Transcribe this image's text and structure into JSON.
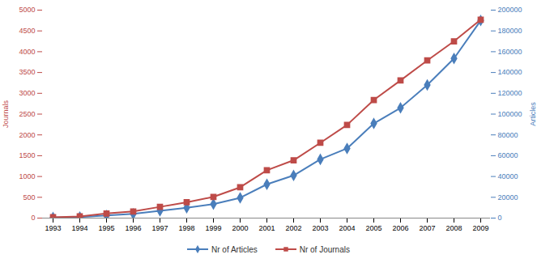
{
  "chart_data": {
    "type": "line",
    "categories": [
      "1993",
      "1994",
      "1995",
      "1996",
      "1997",
      "1998",
      "1999",
      "2000",
      "2001",
      "2002",
      "2003",
      "2004",
      "2005",
      "2006",
      "2007",
      "2008",
      "2009"
    ],
    "series": [
      {
        "name": "Nr of Articles",
        "color": "#4a7ebb",
        "marker": "diamond",
        "axis": "y2",
        "values": [
          500,
          1000,
          2500,
          4000,
          7000,
          10000,
          13500,
          19500,
          32500,
          41000,
          56500,
          67000,
          91000,
          106000,
          128000,
          153500,
          190000
        ]
      },
      {
        "name": "Nr of Journals",
        "color": "#be4b48",
        "marker": "square",
        "values": [
          20,
          40,
          110,
          160,
          270,
          380,
          510,
          740,
          1150,
          1390,
          1810,
          2240,
          2840,
          3310,
          3790,
          4250,
          4770
        ]
      }
    ],
    "y_label": "Journals",
    "y2_label": "Articles",
    "ylim": [
      0,
      5000
    ],
    "yticks": [
      0,
      500,
      1000,
      1500,
      2000,
      2500,
      3000,
      3500,
      4000,
      4500,
      5000
    ],
    "y2lim": [
      0,
      200000
    ],
    "y2ticks": [
      0,
      20000,
      40000,
      60000,
      80000,
      100000,
      120000,
      140000,
      160000,
      180000,
      200000
    ],
    "grid": false,
    "legend": "bottom"
  }
}
